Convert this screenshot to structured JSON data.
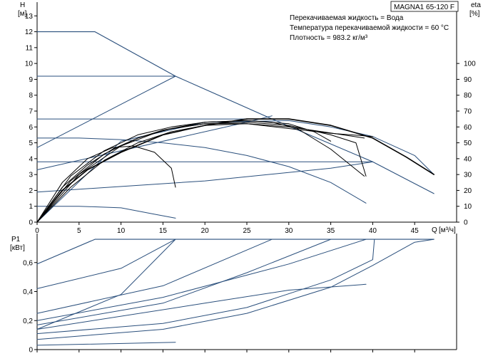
{
  "title": "MAGNA1 65-120 F",
  "conditions": [
    "Перекачиваемая жидкость = Вода",
    "Температура перекачиваемой жидкости = 60 °C",
    "Плотность = 983.2 кг/м³"
  ],
  "colors": {
    "curve_blue": "#2a4f7c",
    "curve_black": "#000000",
    "grid": "#999999",
    "background": "#ffffff"
  },
  "chart_data": [
    {
      "name": "upper",
      "type": "line",
      "ylabel": "H",
      "yunit": "[м]",
      "y2label": "eta",
      "y2unit": "[%]",
      "xlabel": "Q",
      "xunit": "[м³/ч]",
      "xlim": [
        0,
        50
      ],
      "ylim": [
        0,
        14
      ],
      "y2lim": [
        0,
        140
      ],
      "xticks": [
        0,
        5,
        10,
        15,
        20,
        25,
        30,
        35,
        40,
        45
      ],
      "yticks": [
        0,
        1,
        2,
        3,
        4,
        5,
        6,
        7,
        8,
        9,
        10,
        11,
        12,
        13
      ],
      "y2ticks": [
        0,
        10,
        20,
        30,
        40,
        50,
        60,
        70,
        80,
        90,
        100
      ],
      "grid": false,
      "series": [
        {
          "color": "blue",
          "width": 1.1,
          "points": [
            [
              0,
              12
            ],
            [
              6.9,
              12
            ],
            [
              16.5,
              9.2
            ],
            [
              28,
              6.5
            ],
            [
              40,
              3.8
            ],
            [
              47.3,
              1.8
            ]
          ]
        },
        {
          "color": "blue",
          "width": 1,
          "points": [
            [
              0,
              9.2
            ],
            [
              16.5,
              9.2
            ]
          ]
        },
        {
          "color": "blue",
          "width": 1,
          "points": [
            [
              0,
              6.5
            ],
            [
              28,
              6.5
            ]
          ]
        },
        {
          "color": "blue",
          "width": 1,
          "points": [
            [
              0,
              3.8
            ],
            [
              40,
              3.8
            ]
          ]
        },
        {
          "color": "blue",
          "width": 1,
          "points": [
            [
              0,
              4.7
            ],
            [
              16.5,
              9.2
            ]
          ]
        },
        {
          "color": "blue",
          "width": 1,
          "points": [
            [
              0,
              3.3
            ],
            [
              25,
              6.3
            ],
            [
              28,
              6.7
            ]
          ]
        },
        {
          "color": "blue",
          "width": 1,
          "points": [
            [
              0,
              1.9
            ],
            [
              20,
              2.6
            ],
            [
              35,
              3.4
            ],
            [
              40,
              3.8
            ]
          ]
        },
        {
          "color": "blue",
          "width": 1,
          "points": [
            [
              0,
              5.3
            ],
            [
              5,
              5.3
            ],
            [
              10,
              5.2
            ],
            [
              15,
              5.0
            ],
            [
              20,
              4.7
            ],
            [
              25,
              4.2
            ],
            [
              30,
              3.5
            ],
            [
              35,
              2.5
            ],
            [
              39.2,
              1.2
            ]
          ]
        },
        {
          "color": "blue",
          "width": 1,
          "points": [
            [
              0,
              1.0
            ],
            [
              5,
              1.0
            ],
            [
              10,
              0.9
            ],
            [
              14,
              0.5
            ],
            [
              16.5,
              0.25
            ]
          ]
        },
        {
          "color": "blue",
          "width": 1,
          "points": [
            [
              0,
              0
            ],
            [
              10,
              5.1
            ],
            [
              20,
              6.3
            ],
            [
              30,
              6.4
            ],
            [
              35,
              6.0
            ],
            [
              40,
              5.4
            ],
            [
              45,
              4.2
            ],
            [
              47.3,
              3.0
            ]
          ]
        },
        {
          "color": "black",
          "width": 1.6,
          "points": [
            [
              0,
              0
            ],
            [
              3,
              2.0
            ],
            [
              6,
              3.3
            ],
            [
              10,
              4.4
            ],
            [
              15,
              5.5
            ],
            [
              20,
              6.1
            ],
            [
              25,
              6.5
            ],
            [
              30,
              6.5
            ],
            [
              35,
              6.1
            ],
            [
              40,
              5.3
            ],
            [
              44,
              4.1
            ],
            [
              47.3,
              3.0
            ]
          ]
        },
        {
          "color": "black",
          "width": 1,
          "points": [
            [
              0,
              0
            ],
            [
              4,
              2.2
            ],
            [
              8,
              3.9
            ],
            [
              12,
              5.0
            ],
            [
              16,
              5.7
            ],
            [
              20,
              6.1
            ],
            [
              25,
              6.2
            ],
            [
              30,
              6.0
            ],
            [
              34,
              5.7
            ],
            [
              39,
              5.3
            ]
          ]
        },
        {
          "color": "black",
          "width": 1,
          "points": [
            [
              0,
              0
            ],
            [
              4,
              2.6
            ],
            [
              8,
              4.3
            ],
            [
              12,
              5.3
            ],
            [
              16,
              5.9
            ],
            [
              20,
              6.2
            ],
            [
              25,
              6.3
            ],
            [
              30,
              6.1
            ],
            [
              35,
              5.5
            ],
            [
              38,
              5.0
            ],
            [
              39.2,
              2.9
            ]
          ]
        },
        {
          "color": "black",
          "width": 1,
          "points": [
            [
              0,
              0
            ],
            [
              5,
              3.0
            ],
            [
              10,
              4.8
            ],
            [
              15,
              5.8
            ],
            [
              20,
              6.3
            ],
            [
              25,
              6.4
            ],
            [
              30,
              6.2
            ],
            [
              33,
              5.7
            ],
            [
              35,
              5.1
            ]
          ]
        },
        {
          "color": "black",
          "width": 1,
          "points": [
            [
              0,
              0
            ],
            [
              3,
              2.2
            ],
            [
              6,
              3.6
            ],
            [
              9,
              4.6
            ],
            [
              12,
              5.3
            ],
            [
              15,
              5.8
            ],
            [
              20,
              6.2
            ],
            [
              25,
              6.2
            ],
            [
              30,
              5.9
            ],
            [
              35,
              5.6
            ],
            [
              40,
              5.4
            ]
          ]
        },
        {
          "color": "black",
          "width": 1,
          "points": [
            [
              0,
              0
            ],
            [
              3,
              2.5
            ],
            [
              6,
              4.0
            ],
            [
              9,
              4.7
            ],
            [
              11.5,
              4.8
            ],
            [
              14,
              4.4
            ],
            [
              16,
              3.4
            ],
            [
              16.5,
              2.2
            ]
          ]
        },
        {
          "color": "black",
          "width": 1,
          "points": [
            [
              0,
              0
            ],
            [
              4,
              2.9
            ],
            [
              8,
              4.5
            ],
            [
              12,
              5.5
            ],
            [
              16,
              6.0
            ],
            [
              20,
              6.3
            ],
            [
              25,
              6.4
            ],
            [
              28,
              6.3
            ],
            [
              31,
              5.9
            ],
            [
              35,
              4.6
            ],
            [
              39,
              2.9
            ]
          ]
        }
      ]
    },
    {
      "name": "lower",
      "type": "line",
      "ylabel": "P1",
      "yunit": "[кВт]",
      "xlim": [
        0,
        50
      ],
      "ylim": [
        0,
        0.8
      ],
      "yticks": [
        0,
        0.2,
        0.4,
        0.6
      ],
      "yticklabels": [
        "0",
        "0,2",
        "0,4",
        "0,6"
      ],
      "grid": false,
      "series": [
        {
          "color": "blue",
          "width": 1.1,
          "points": [
            [
              0,
              0.59
            ],
            [
              6.9,
              0.76
            ],
            [
              47.3,
              0.76
            ]
          ]
        },
        {
          "color": "blue",
          "width": 1,
          "points": [
            [
              0,
              0.42
            ],
            [
              10,
              0.56
            ],
            [
              16.5,
              0.76
            ]
          ]
        },
        {
          "color": "blue",
          "width": 1,
          "points": [
            [
              0,
              0.25
            ],
            [
              15,
              0.44
            ],
            [
              28,
              0.76
            ]
          ]
        },
        {
          "color": "blue",
          "width": 1,
          "points": [
            [
              0,
              0.17
            ],
            [
              15,
              0.32
            ],
            [
              25,
              0.53
            ],
            [
              35,
              0.76
            ]
          ]
        },
        {
          "color": "blue",
          "width": 1,
          "points": [
            [
              0,
              0.14
            ],
            [
              10,
              0.38
            ],
            [
              16.5,
              0.76
            ]
          ]
        },
        {
          "color": "blue",
          "width": 1,
          "points": [
            [
              0,
              0.2
            ],
            [
              15,
              0.36
            ],
            [
              30,
              0.59
            ],
            [
              39.2,
              0.76
            ]
          ]
        },
        {
          "color": "blue",
          "width": 1,
          "points": [
            [
              0,
              0.14
            ],
            [
              20,
              0.32
            ],
            [
              30,
              0.41
            ],
            [
              39.2,
              0.45
            ]
          ]
        },
        {
          "color": "blue",
          "width": 1,
          "points": [
            [
              0,
              0.07
            ],
            [
              15,
              0.14
            ],
            [
              25,
              0.25
            ],
            [
              35,
              0.43
            ],
            [
              40,
              0.58
            ],
            [
              45,
              0.74
            ],
            [
              47.3,
              0.76
            ]
          ]
        },
        {
          "color": "blue",
          "width": 1,
          "points": [
            [
              0,
              0.11
            ],
            [
              15,
              0.18
            ],
            [
              25,
              0.29
            ],
            [
              35,
              0.48
            ],
            [
              40,
              0.62
            ],
            [
              40.2,
              0.76
            ]
          ]
        },
        {
          "color": "blue",
          "width": 1,
          "points": [
            [
              0,
              0.03
            ],
            [
              16.5,
              0.05
            ]
          ]
        }
      ]
    }
  ]
}
